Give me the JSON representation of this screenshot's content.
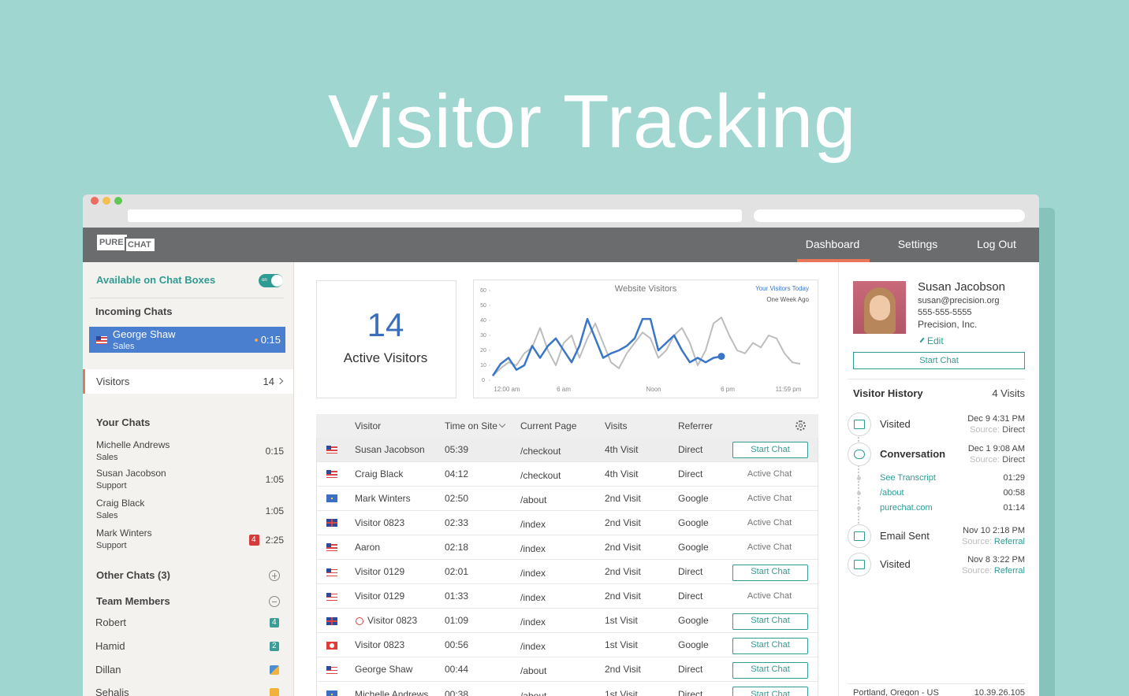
{
  "title": "Visitor Tracking",
  "nav": {
    "logo": [
      "PURE",
      "CHAT"
    ],
    "items": [
      "Dashboard",
      "Settings",
      "Log Out"
    ]
  },
  "sidebar": {
    "availability": "Available on Chat Boxes",
    "toggle": "on",
    "incoming_title": "Incoming Chats",
    "incoming": {
      "name": "George Shaw",
      "dept": "Sales",
      "time": "0:15"
    },
    "visitors_label": "Visitors",
    "visitors_count": 14,
    "your_chats_title": "Your Chats",
    "your_chats": [
      {
        "name": "Michelle Andrews",
        "dept": "Sales",
        "time": "0:15"
      },
      {
        "name": "Susan Jacobson",
        "dept": "Support",
        "time": "1:05"
      },
      {
        "name": "Craig Black",
        "dept": "Sales",
        "time": "1:05"
      },
      {
        "name": "Mark Winters",
        "dept": "Support",
        "time": "2:25",
        "badge": 4
      }
    ],
    "other_chats": "Other Chats (3)",
    "team_title": "Team Members",
    "team": [
      {
        "name": "Robert",
        "badge": 4
      },
      {
        "name": "Hamid",
        "badge": 2
      },
      {
        "name": "Dillan"
      },
      {
        "name": "Sehalis"
      }
    ]
  },
  "stats": {
    "count": 14,
    "label": "Active Visitors"
  },
  "visitor_chart": {
    "type": "line",
    "title": "Website Visitors",
    "ylim": [
      0,
      60
    ],
    "yticks": [
      0,
      10,
      20,
      30,
      40,
      50,
      60
    ],
    "xlabels": [
      "12:00 am",
      "6 am",
      "Noon",
      "6 pm",
      "11:59 pm"
    ],
    "series": [
      {
        "name": "Your Visitors Today",
        "color": "#3b76c6",
        "values": [
          3,
          11,
          15,
          7,
          10,
          23,
          15,
          23,
          28,
          20,
          12,
          23,
          41,
          28,
          15,
          18,
          20,
          23,
          28,
          41,
          41,
          20,
          25,
          30,
          20,
          12,
          15,
          12,
          15,
          16
        ]
      },
      {
        "name": "One Week Ago",
        "color": "#bdbdbd",
        "values": [
          3,
          8,
          12,
          10,
          18,
          22,
          35,
          20,
          10,
          25,
          30,
          15,
          28,
          38,
          25,
          12,
          8,
          18,
          25,
          32,
          28,
          15,
          20,
          30,
          35,
          25,
          10,
          20,
          38,
          42,
          30,
          20,
          18,
          25,
          22,
          30,
          28,
          18,
          12,
          11
        ]
      }
    ]
  },
  "table": {
    "headers": [
      "Visitor",
      "Time on Site",
      "Current Page",
      "Visits",
      "Referrer"
    ],
    "rows": [
      {
        "flag": "us",
        "selected": true,
        "cells": [
          "Susan Jacobson",
          "05:39",
          "/checkout",
          "4th Visit",
          "Direct"
        ],
        "action": "Start Chat",
        "action_type": "button"
      },
      {
        "flag": "us",
        "cells": [
          "Craig Black",
          "04:12",
          "/checkout",
          "4th Visit",
          "Direct"
        ],
        "action": "Active Chat",
        "action_type": "text"
      },
      {
        "flag": "eu",
        "cells": [
          "Mark Winters",
          "02:50",
          "/about",
          "2nd Visit",
          "Google"
        ],
        "action": "Active Chat",
        "action_type": "text"
      },
      {
        "flag": "uk",
        "cells": [
          "Visitor 0823",
          "02:33",
          "/index",
          "2nd Visit",
          "Google"
        ],
        "action": "Active Chat",
        "action_type": "text"
      },
      {
        "flag": "us",
        "cells": [
          "Aaron",
          "02:18",
          "/index",
          "2nd Visit",
          "Google"
        ],
        "action": "Active Chat",
        "action_type": "text"
      },
      {
        "flag": "us",
        "cells": [
          "Visitor 0129",
          "02:01",
          "/index",
          "2nd Visit",
          "Direct"
        ],
        "action": "Start Chat",
        "action_type": "button"
      },
      {
        "flag": "us",
        "cells": [
          "Visitor 0129",
          "01:33",
          "/index",
          "2nd Visit",
          "Direct"
        ],
        "action": "Active Chat",
        "action_type": "text"
      },
      {
        "flag": "uk",
        "blocked": true,
        "cells": [
          "Visitor 0823",
          "01:09",
          "/index",
          "1st Visit",
          "Google"
        ],
        "action": "Start Chat",
        "action_type": "button"
      },
      {
        "flag": "tr",
        "cells": [
          "Visitor 0823",
          "00:56",
          "/index",
          "1st Visit",
          "Google"
        ],
        "action": "Start Chat",
        "action_type": "button"
      },
      {
        "flag": "us",
        "cells": [
          "George Shaw",
          "00:44",
          "/about",
          "2nd Visit",
          "Direct"
        ],
        "action": "Start Chat",
        "action_type": "button"
      },
      {
        "flag": "eu",
        "cells": [
          "Michelle Andrews",
          "00:38",
          "/about",
          "1st Visit",
          "Direct"
        ],
        "action": "Start Chat",
        "action_type": "button"
      }
    ]
  },
  "profile": {
    "name": "Susan Jacobson",
    "email": "susan@precision.org",
    "phone": "555-555-5555",
    "company": "Precision, Inc.",
    "edit": "Edit",
    "button": "Start Chat",
    "history_title": "Visitor History",
    "visits": "4 Visits",
    "history": [
      {
        "event": "Visited",
        "date": "Dec 9 4:31 PM",
        "source_label": "Source:",
        "source": "Direct"
      },
      {
        "event": "Conversation",
        "date": "Dec 1 9:08 AM",
        "source_label": "Source:",
        "source": "Direct"
      },
      {
        "event": "Email Sent",
        "date": "Nov 10 2:18 PM",
        "source_label": "Source:",
        "source": "Referral"
      },
      {
        "event": "Visited",
        "date": "Nov 8 3:22 PM",
        "source_label": "Source:",
        "source": "Referral"
      }
    ],
    "conversation_pages": [
      {
        "page": "See Transcript",
        "time": "01:29"
      },
      {
        "page": "/about",
        "time": "00:58"
      },
      {
        "page": "purechat.com",
        "time": "01:14"
      }
    ],
    "location": "Portland, Oregon - US",
    "ip": "10.39.26.105"
  }
}
